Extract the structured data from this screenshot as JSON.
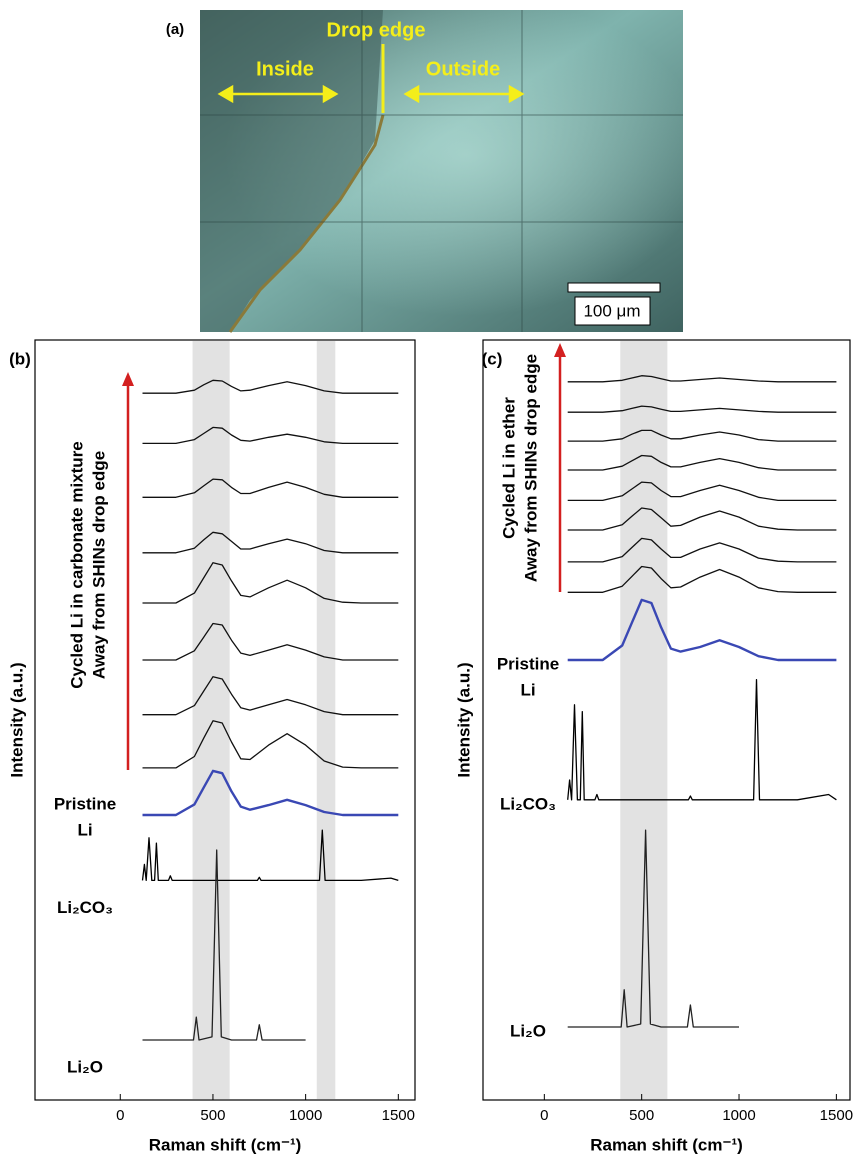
{
  "panel_a": {
    "label": "(a)",
    "drop_edge": "Drop edge",
    "inside": "Inside",
    "outside": "Outside",
    "scale_bar": "100 μm"
  },
  "chart_data": [
    {
      "type": "line",
      "panel_label": "(b)",
      "x_label": "Raman shift (cm⁻¹)",
      "y_label": "Intensity (a.u.)",
      "annotation": [
        "Cycled Li in carbonate mixture",
        "Away from SHINs drop edge"
      ],
      "xlim": [
        -460,
        1590
      ],
      "xticks": [
        0,
        500,
        1000,
        1500
      ],
      "ylim": [
        0,
        100
      ],
      "highlight_bands": [
        [
          390,
          590
        ],
        [
          1060,
          1160
        ]
      ],
      "series": [
        {
          "color": "#111111",
          "x": [
            120,
            200,
            300,
            400,
            450,
            500,
            550,
            600,
            650,
            700,
            800,
            900,
            1000,
            1100,
            1200,
            1300,
            1400,
            1500
          ],
          "values": [
            93.0,
            93.0,
            93.0,
            93.4,
            94.1,
            94.7,
            94.6,
            93.9,
            93.3,
            93.4,
            94.0,
            94.5,
            94.0,
            93.3,
            93.0,
            93.0,
            93.0,
            93.0
          ]
        },
        {
          "color": "#111111",
          "x": [
            120,
            200,
            300,
            400,
            450,
            500,
            550,
            600,
            650,
            700,
            800,
            900,
            1000,
            1100,
            1200,
            1300,
            1400,
            1500
          ],
          "values": [
            86.4,
            86.4,
            86.4,
            86.9,
            87.7,
            88.5,
            88.4,
            87.5,
            86.8,
            86.7,
            87.2,
            87.6,
            87.2,
            86.6,
            86.4,
            86.4,
            86.4,
            86.4
          ]
        },
        {
          "color": "#111111",
          "x": [
            120,
            200,
            300,
            400,
            450,
            500,
            550,
            600,
            650,
            700,
            800,
            900,
            1000,
            1100,
            1200,
            1300,
            1400,
            1500
          ],
          "values": [
            79.3,
            79.3,
            79.3,
            79.9,
            80.8,
            81.7,
            81.6,
            80.6,
            79.8,
            79.8,
            80.6,
            81.3,
            80.6,
            79.7,
            79.3,
            79.3,
            79.3,
            79.3
          ]
        },
        {
          "color": "#111111",
          "x": [
            120,
            200,
            300,
            400,
            450,
            500,
            550,
            600,
            650,
            700,
            800,
            900,
            1000,
            1100,
            1200,
            1300,
            1400,
            1500
          ],
          "values": [
            72.0,
            72.0,
            72.0,
            72.6,
            73.7,
            74.7,
            74.5,
            73.5,
            72.5,
            72.5,
            73.2,
            73.8,
            73.2,
            72.3,
            72.0,
            72.0,
            72.0,
            72.0
          ]
        },
        {
          "color": "#111111",
          "x": [
            120,
            200,
            300,
            400,
            450,
            500,
            550,
            600,
            650,
            700,
            800,
            900,
            1000,
            1100,
            1200,
            1300,
            1400,
            1500
          ],
          "values": [
            65.4,
            65.4,
            65.4,
            66.7,
            68.7,
            70.7,
            70.4,
            68.3,
            66.4,
            66.2,
            67.4,
            68.4,
            67.4,
            66.0,
            65.5,
            65.4,
            65.4,
            65.4
          ]
        },
        {
          "color": "#111111",
          "x": [
            120,
            200,
            300,
            400,
            450,
            500,
            550,
            600,
            650,
            700,
            800,
            900,
            1000,
            1100,
            1200,
            1300,
            1400,
            1500
          ],
          "values": [
            57.9,
            57.9,
            57.9,
            59.1,
            60.9,
            62.7,
            62.5,
            60.5,
            58.8,
            58.5,
            59.2,
            59.9,
            59.2,
            58.3,
            57.9,
            57.9,
            57.9,
            57.9
          ]
        },
        {
          "color": "#111111",
          "x": [
            120,
            200,
            300,
            400,
            450,
            500,
            550,
            600,
            650,
            700,
            800,
            900,
            1000,
            1100,
            1200,
            1300,
            1400,
            1500
          ],
          "values": [
            50.7,
            50.7,
            50.7,
            51.9,
            53.8,
            55.7,
            55.4,
            53.4,
            51.6,
            51.3,
            52.0,
            52.7,
            52.0,
            51.1,
            50.7,
            50.7,
            50.7,
            50.7
          ]
        },
        {
          "color": "#111111",
          "x": [
            120,
            200,
            300,
            400,
            450,
            500,
            550,
            600,
            650,
            700,
            800,
            900,
            1000,
            1100,
            1200,
            1300,
            1400,
            1500
          ],
          "values": [
            43.7,
            43.7,
            43.7,
            45.2,
            47.6,
            49.9,
            49.6,
            47.1,
            44.9,
            44.8,
            46.7,
            48.2,
            46.7,
            44.6,
            43.8,
            43.7,
            43.7,
            43.7
          ]
        },
        {
          "label_lines": [
            "Pristine",
            "Li"
          ],
          "color": "#3a48b4",
          "x": [
            120,
            200,
            300,
            400,
            450,
            500,
            550,
            600,
            650,
            700,
            800,
            900,
            1000,
            1100,
            1200,
            1300,
            1400,
            1500
          ],
          "values": [
            37.5,
            37.5,
            37.5,
            38.9,
            41.1,
            43.3,
            43.0,
            40.6,
            38.6,
            38.2,
            38.8,
            39.5,
            38.8,
            37.9,
            37.5,
            37.5,
            37.5,
            37.5
          ]
        },
        {
          "label_lines": [
            "Li₂CO₃"
          ],
          "color": "#000000",
          "x": [
            120,
            130,
            140,
            155,
            170,
            185,
            195,
            205,
            220,
            260,
            270,
            280,
            400,
            740,
            750,
            760,
            1000,
            1075,
            1090,
            1105,
            1300,
            1460,
            1500
          ],
          "values": [
            28.9,
            31.0,
            28.9,
            34.5,
            28.9,
            28.9,
            33.8,
            28.9,
            28.9,
            28.9,
            29.5,
            28.9,
            28.9,
            28.9,
            29.3,
            28.9,
            28.9,
            28.9,
            35.5,
            28.9,
            28.9,
            29.2,
            28.9
          ]
        },
        {
          "label_lines": [
            "Li₂O"
          ],
          "color": "#222222",
          "x": [
            120,
            300,
            395,
            410,
            425,
            495,
            520,
            545,
            600,
            735,
            750,
            765,
            1000
          ],
          "values": [
            7.9,
            7.9,
            7.9,
            10.9,
            7.9,
            8.3,
            32.9,
            8.3,
            7.9,
            7.9,
            9.9,
            7.9,
            7.9
          ]
        }
      ]
    },
    {
      "type": "line",
      "panel_label": "(c)",
      "x_label": "Raman shift (cm⁻¹)",
      "y_label": "Intensity (a.u.)",
      "annotation": [
        "Cycled Li in ether",
        "Away from SHINs drop edge"
      ],
      "xlim": [
        -315,
        1570
      ],
      "xticks": [
        0,
        500,
        1000,
        1500
      ],
      "ylim": [
        0,
        100
      ],
      "highlight_bands": [
        [
          390,
          632
        ]
      ],
      "series": [
        {
          "color": "#111111",
          "x": [
            120,
            200,
            300,
            400,
            450,
            500,
            550,
            600,
            650,
            700,
            800,
            900,
            1000,
            1100,
            1200,
            1300,
            1400,
            1500
          ],
          "values": [
            94.5,
            94.5,
            94.5,
            94.7,
            95.0,
            95.3,
            95.2,
            94.9,
            94.6,
            94.6,
            94.8,
            95.0,
            94.8,
            94.6,
            94.5,
            94.5,
            94.5,
            94.5
          ]
        },
        {
          "color": "#111111",
          "x": [
            120,
            200,
            300,
            400,
            450,
            500,
            550,
            600,
            650,
            700,
            800,
            900,
            1000,
            1100,
            1200,
            1300,
            1400,
            1500
          ],
          "values": [
            90.5,
            90.5,
            90.5,
            90.7,
            91.0,
            91.3,
            91.2,
            90.9,
            90.6,
            90.6,
            90.8,
            91.0,
            90.8,
            90.6,
            90.5,
            90.5,
            90.5,
            90.5
          ]
        },
        {
          "color": "#111111",
          "x": [
            120,
            200,
            300,
            400,
            450,
            500,
            550,
            600,
            650,
            700,
            800,
            900,
            1000,
            1100,
            1200,
            1300,
            1400,
            1500
          ],
          "values": [
            86.7,
            86.7,
            86.7,
            87.0,
            87.6,
            88.1,
            88.1,
            87.5,
            87.0,
            87.0,
            87.5,
            87.9,
            87.5,
            86.9,
            86.7,
            86.7,
            86.7,
            86.7
          ]
        },
        {
          "color": "#111111",
          "x": [
            120,
            200,
            300,
            400,
            450,
            500,
            550,
            600,
            650,
            700,
            800,
            900,
            1000,
            1100,
            1200,
            1300,
            1400,
            1500
          ],
          "values": [
            82.9,
            82.9,
            82.9,
            83.4,
            84.1,
            84.8,
            84.7,
            83.9,
            83.3,
            83.3,
            83.9,
            84.4,
            83.9,
            83.2,
            82.9,
            82.9,
            82.9,
            82.9
          ]
        },
        {
          "color": "#111111",
          "x": [
            120,
            200,
            300,
            400,
            450,
            500,
            550,
            600,
            650,
            700,
            800,
            900,
            1000,
            1100,
            1200,
            1300,
            1400,
            1500
          ],
          "values": [
            78.9,
            78.9,
            78.9,
            79.5,
            80.4,
            81.3,
            81.2,
            80.2,
            79.4,
            79.4,
            80.2,
            80.9,
            80.2,
            79.3,
            78.9,
            78.9,
            78.9,
            78.9
          ]
        },
        {
          "color": "#111111",
          "x": [
            120,
            200,
            300,
            400,
            450,
            500,
            550,
            600,
            650,
            700,
            800,
            900,
            1000,
            1100,
            1200,
            1300,
            1400,
            1500
          ],
          "values": [
            75.0,
            75.0,
            75.0,
            75.7,
            76.8,
            77.9,
            77.7,
            76.6,
            75.5,
            75.6,
            76.7,
            77.5,
            76.7,
            75.5,
            75.1,
            75.0,
            75.0,
            75.0
          ]
        },
        {
          "color": "#111111",
          "x": [
            120,
            200,
            300,
            400,
            450,
            500,
            550,
            600,
            650,
            700,
            800,
            900,
            1000,
            1100,
            1200,
            1300,
            1400,
            1500
          ],
          "values": [
            70.8,
            70.8,
            70.8,
            71.5,
            72.7,
            73.9,
            73.7,
            72.5,
            71.4,
            71.4,
            72.5,
            73.3,
            72.5,
            71.3,
            70.9,
            70.8,
            70.8,
            70.8
          ]
        },
        {
          "color": "#111111",
          "x": [
            120,
            200,
            300,
            400,
            450,
            500,
            550,
            600,
            650,
            700,
            800,
            900,
            1000,
            1100,
            1200,
            1300,
            1400,
            1500
          ],
          "values": [
            66.8,
            66.8,
            66.8,
            67.6,
            68.9,
            70.2,
            70.0,
            68.6,
            67.4,
            67.5,
            68.8,
            69.8,
            68.8,
            67.4,
            66.9,
            66.8,
            66.8,
            66.8
          ]
        },
        {
          "label_lines": [
            "Pristine",
            "Li"
          ],
          "color": "#3a48b4",
          "x": [
            120,
            200,
            300,
            400,
            450,
            500,
            550,
            600,
            650,
            700,
            800,
            900,
            1000,
            1100,
            1200,
            1300,
            1400,
            1500
          ],
          "values": [
            57.9,
            57.9,
            57.9,
            59.8,
            62.8,
            65.8,
            65.4,
            62.2,
            59.4,
            59.0,
            59.6,
            60.5,
            59.6,
            58.4,
            57.9,
            57.9,
            57.9,
            57.9
          ]
        },
        {
          "label_lines": [
            "Li₂CO₃"
          ],
          "color": "#000000",
          "x": [
            120,
            130,
            140,
            155,
            170,
            185,
            195,
            205,
            220,
            260,
            270,
            280,
            400,
            740,
            750,
            760,
            1000,
            1075,
            1090,
            1105,
            1300,
            1460,
            1500
          ],
          "values": [
            39.5,
            42.1,
            39.5,
            52.0,
            39.5,
            39.5,
            51.1,
            39.5,
            39.5,
            39.5,
            40.2,
            39.5,
            39.5,
            39.5,
            40.0,
            39.5,
            39.5,
            39.5,
            55.3,
            39.5,
            39.5,
            40.2,
            39.5
          ]
        },
        {
          "label_lines": [
            "Li₂O"
          ],
          "color": "#222222",
          "x": [
            120,
            300,
            395,
            410,
            425,
            495,
            520,
            545,
            600,
            735,
            750,
            765,
            1000
          ],
          "values": [
            9.6,
            9.6,
            9.6,
            14.5,
            9.6,
            10.0,
            35.5,
            10.0,
            9.6,
            9.6,
            12.5,
            9.6,
            9.6
          ]
        }
      ]
    }
  ]
}
